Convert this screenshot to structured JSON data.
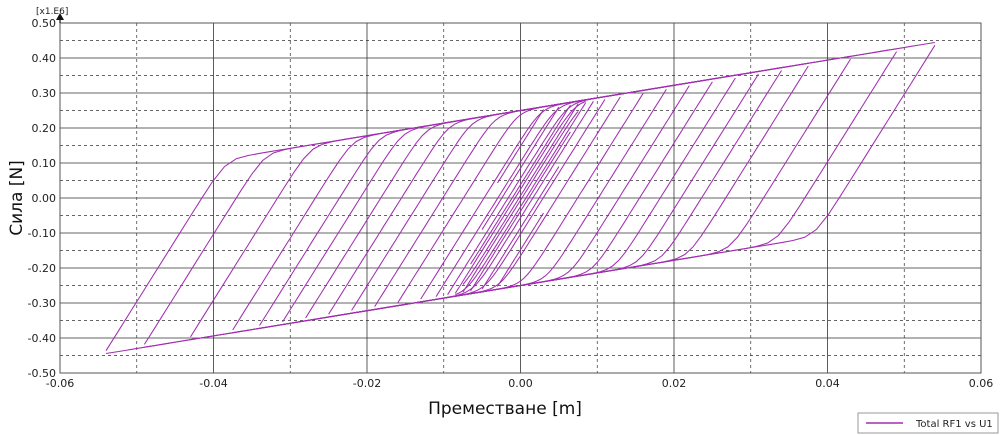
{
  "chart_data": {
    "type": "line",
    "title": "",
    "xlabel": "Преместване [m]",
    "ylabel": "Сила [N]",
    "y_scale_label": "[x1.E6]",
    "xlim": [
      -0.06,
      0.06
    ],
    "ylim": [
      -0.5,
      0.5
    ],
    "x_ticks": [
      "-0.06",
      "-0.04",
      "-0.02",
      "0.00",
      "0.02",
      "0.04",
      "0.06"
    ],
    "y_ticks": [
      "-0.50",
      "-0.40",
      "-0.30",
      "-0.20",
      "-0.10",
      "0.00",
      "0.10",
      "0.20",
      "0.30",
      "0.40",
      "0.50"
    ],
    "grid": true,
    "legend_position": "bottom-right",
    "colors": {
      "series": "#a12fb0",
      "grid": "#333333",
      "frame": "#555555"
    },
    "series": [
      {
        "name": "Total RF1 vs U1",
        "amplitudes": [
          0.003,
          0.005,
          0.0065,
          0.0075,
          0.0085,
          0.0095,
          0.011,
          0.013,
          0.016,
          0.019,
          0.022,
          0.025,
          0.028,
          0.031,
          0.034,
          0.0375,
          0.043,
          0.049,
          0.054
        ],
        "elastic_stiffness": 35000000,
        "yield_force": 0.25,
        "hardening_slope": 3.6,
        "peaks": [
          {
            "u": 0.054,
            "f": 0.455
          },
          {
            "u": 0.049,
            "f": 0.435
          },
          {
            "u": 0.043,
            "f": 0.418
          },
          {
            "u": 0.0375,
            "f": 0.398
          },
          {
            "u": 0.034,
            "f": 0.382
          },
          {
            "u": -0.054,
            "f": -0.395
          },
          {
            "u": -0.049,
            "f": -0.38
          },
          {
            "u": -0.043,
            "f": -0.37
          },
          {
            "u": -0.0375,
            "f": -0.36
          }
        ]
      }
    ]
  }
}
